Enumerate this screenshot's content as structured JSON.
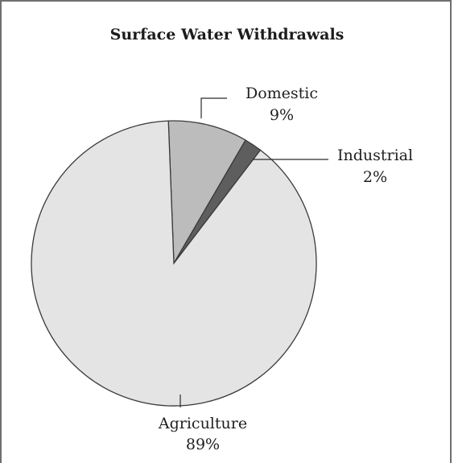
{
  "chart_data": {
    "type": "pie",
    "title": "Surface Water Withdrawals",
    "slices": [
      {
        "label": "Domestic",
        "value": 9,
        "value_label": "9%",
        "color": "#bcbcbc"
      },
      {
        "label": "Industrial",
        "value": 2,
        "value_label": "2%",
        "color": "#5e5e5e"
      },
      {
        "label": "Agriculture",
        "value": 89,
        "value_label": "89%",
        "color": "#e4e4e4"
      }
    ],
    "start": "top, clockwise",
    "legend": "none",
    "outline_color": "#3a3a3a"
  }
}
